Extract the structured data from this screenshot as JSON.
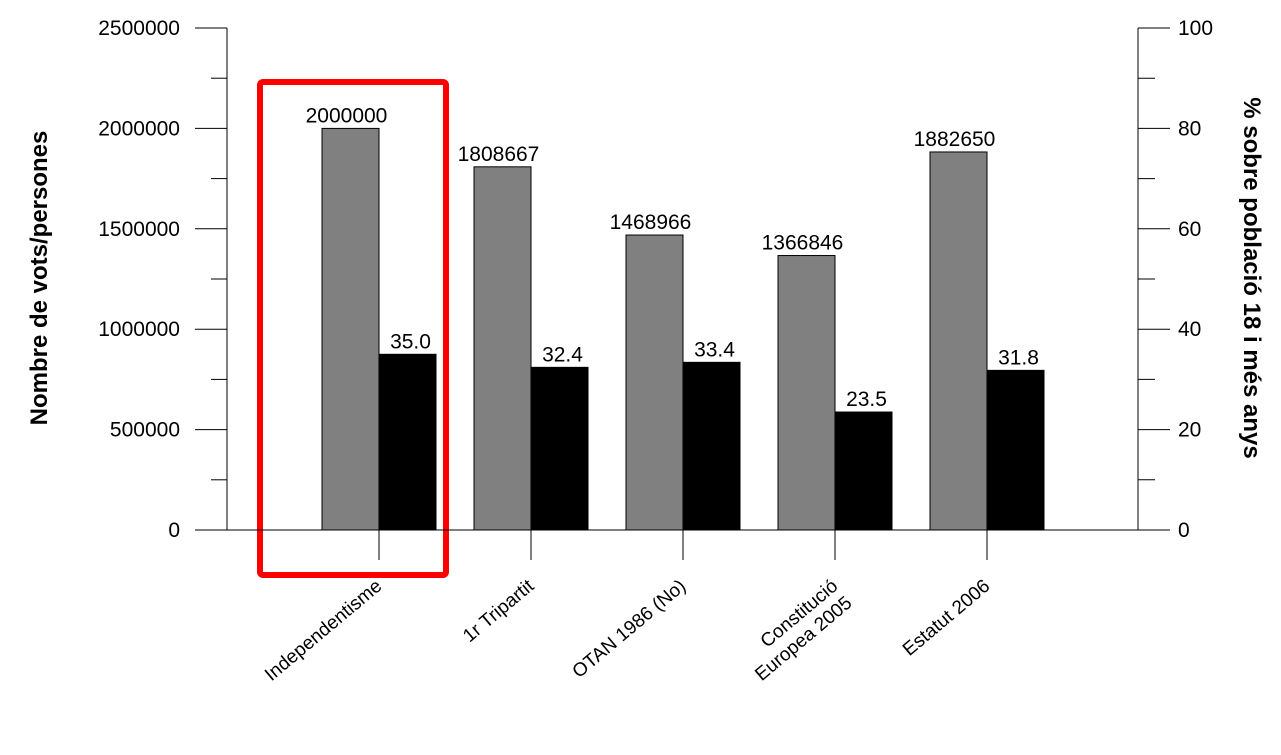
{
  "chart_data": {
    "type": "bar",
    "categories": [
      "Independentisme",
      "1r Tripartit",
      "OTAN 1986 (No)",
      "Constitució Europea 2005",
      "Estatut 2006"
    ],
    "category_lines": [
      [
        "Independentisme"
      ],
      [
        "1r Tripartit"
      ],
      [
        "OTAN 1986 (No)"
      ],
      [
        "Constitució",
        "Europea 2005"
      ],
      [
        "Estatut 2006"
      ]
    ],
    "series": [
      {
        "values": [
          2000000,
          1808667,
          1468966,
          1366846,
          1882650
        ],
        "axis": "left",
        "color": "#808080",
        "labels": [
          "2000000",
          "1808667",
          "1468966",
          "1366846",
          "1882650"
        ]
      },
      {
        "values": [
          35.0,
          32.4,
          33.4,
          23.5,
          31.8
        ],
        "axis": "right",
        "color": "#000000",
        "labels": [
          "35.0",
          "32.4",
          "33.4",
          "23.5",
          "31.8"
        ]
      }
    ],
    "ylabel": "Nombre de vots/persones",
    "ylabel_right": "% sobre població 18 i més anys",
    "ylim": [
      0,
      2500000
    ],
    "ylim_right": [
      0,
      100
    ],
    "yticks": [
      0,
      500000,
      1000000,
      1500000,
      2000000,
      2500000
    ],
    "yticks_right": [
      0,
      20,
      40,
      60,
      80,
      100
    ],
    "highlight_category": "Independentisme",
    "highlight_color": "#ff0000",
    "grid": false,
    "legend": "none"
  }
}
